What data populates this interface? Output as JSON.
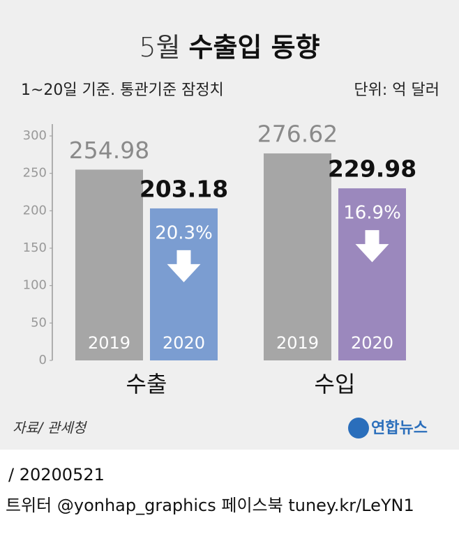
{
  "chart_data": {
    "type": "bar",
    "title": [
      "5월",
      "수출입 동향"
    ],
    "subtitle": "1~20일 기준. 통관기준 잠정치",
    "unit": "단위: 억 달러",
    "categories": [
      "수출",
      "수입"
    ],
    "series": [
      {
        "name": "2019",
        "color": "#a6a6a6",
        "values": [
          254.98,
          276.62
        ]
      },
      {
        "name": "2020",
        "colors": [
          "#7b9dd1",
          "#9b88bd"
        ],
        "values": [
          203.18,
          229.98
        ],
        "change_values": [
          20.3,
          16.9
        ],
        "change_labels": [
          "20.3%",
          "16.9%"
        ]
      }
    ],
    "ylim": [
      0,
      300
    ],
    "yticks": [
      0,
      50,
      100,
      150,
      200,
      250,
      300
    ],
    "source": "자료/ 관세청",
    "logo": "연합뉴스"
  },
  "footer": {
    "date": "/ 20200521",
    "links": "트위터 @yonhap_graphics 페이스북 tuney.kr/LeYN1"
  }
}
